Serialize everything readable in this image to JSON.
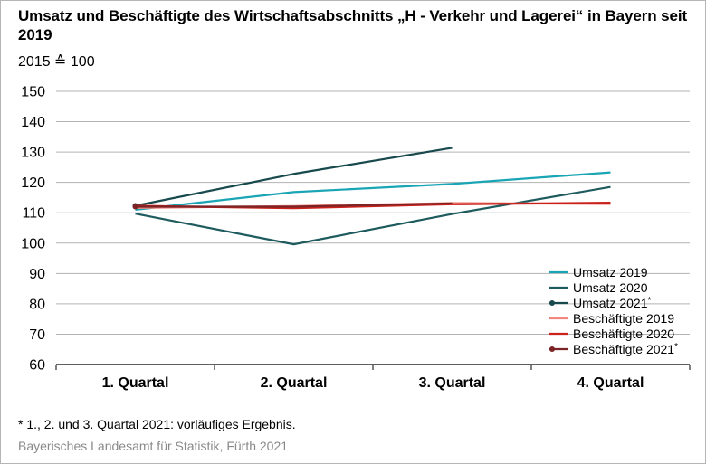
{
  "title": "Umsatz und Beschäftigte des Wirtschaftsabschnitts „H - Verkehr und Lagerei“ in Bayern seit 2019",
  "subtitle": "2015 ≙ 100",
  "footnote": "* 1., 2. und 3. Quartal 2021: vorläufiges Ergebnis.",
  "source": "Bayerisches Landesamt für Statistik, Fürth 2021",
  "chart_data": {
    "type": "line",
    "categories": [
      "1. Quartal",
      "2. Quartal",
      "3. Quartal",
      "4. Quartal"
    ],
    "ylim": [
      60,
      150
    ],
    "yticks": [
      60,
      70,
      80,
      90,
      100,
      110,
      120,
      130,
      140,
      150
    ],
    "grid": true,
    "legend_position": "bottom-right",
    "series": [
      {
        "name": "Umsatz 2019",
        "color": "#1aa5b5",
        "marker": false,
        "values": [
          111,
          116.8,
          119.5,
          123.3
        ]
      },
      {
        "name": "Umsatz 2020",
        "color": "#1e5b5e",
        "marker": false,
        "values": [
          109.7,
          99.6,
          109.6,
          118.5
        ]
      },
      {
        "name": "Umsatz 2021*",
        "color": "#17494d",
        "marker": true,
        "values": [
          112.3,
          122.8,
          131.4,
          null
        ]
      },
      {
        "name": "Beschäftigte 2019",
        "color": "#f0877d",
        "marker": false,
        "values": [
          111.6,
          112.2,
          113.2,
          112.9
        ]
      },
      {
        "name": "Beschäftigte 2020",
        "color": "#c9211b",
        "marker": false,
        "values": [
          112.3,
          111.5,
          112.8,
          113.3
        ]
      },
      {
        "name": "Beschäftigte 2021*",
        "color": "#7c2326",
        "marker": true,
        "values": [
          112,
          112,
          113.1,
          null
        ]
      }
    ]
  }
}
